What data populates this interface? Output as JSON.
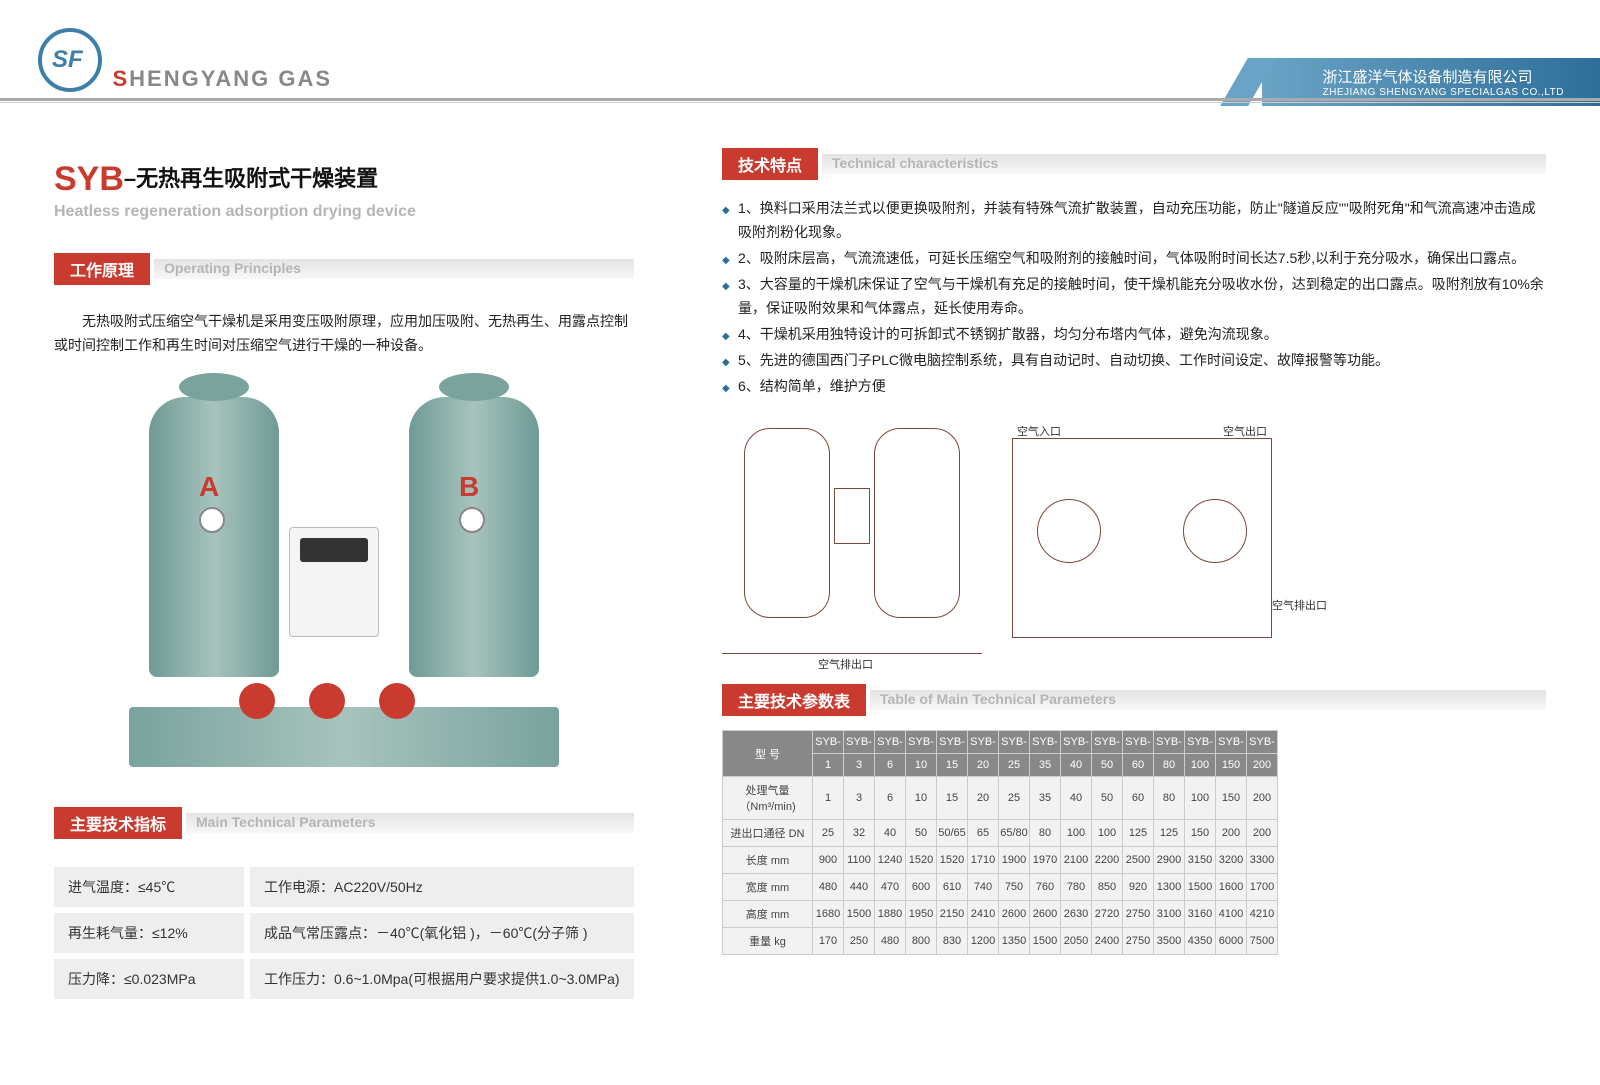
{
  "brand": {
    "name": "HENGYANG GAS",
    "prefix": "S"
  },
  "company": {
    "cn": "浙江盛洋气体设备制造有限公司",
    "en": "ZHEJIANG SHENGYANG SPECIALGAS CO.,LTD"
  },
  "product": {
    "code": "SYB",
    "cn": "–无热再生吸附式干燥装置",
    "en": "Heatless regeneration adsorption drying device"
  },
  "sections": {
    "principle": {
      "cn": "工作原理",
      "en": "Operating  Principles"
    },
    "spec": {
      "cn": "主要技术指标",
      "en": "Main Technical Parameters"
    },
    "feat": {
      "cn": "技术特点",
      "en": "Technical characteristics"
    },
    "table": {
      "cn": "主要技术参数表",
      "en": "Table of Main Technical Parameters"
    }
  },
  "principle_text": "无热吸附式压缩空气干燥机是采用变压吸附原理，应用加压吸附、无热再生、用露点控制或时间控制工作和再生时间对压缩空气进行干燥的一种设备。",
  "tank_labels": {
    "a": "A",
    "b": "B"
  },
  "specs": [
    {
      "a": "进气温度：≤45℃",
      "b": "工作电源：AC220V/50Hz"
    },
    {
      "a": "再生耗气量：≤12%",
      "b": "成品气常压露点：－40℃(氧化铝 )，－60℃(分子筛 )"
    },
    {
      "a": "压力降：≤0.023MPa",
      "b": "工作压力：0.6~1.0Mpa(可根据用户要求提供1.0~3.0MPa)"
    }
  ],
  "features": [
    "1、换料口采用法兰式以便更换吸附剂，并装有特殊气流扩散装置，自动充压功能，防止\"隧道反应\"\"吸附死角\"和气流高速冲击造成吸附剂粉化现象。",
    "2、吸附床层高，气流流速低，可延长压缩空气和吸附剂的接触时间，气体吸附时间长达7.5秒,以利于充分吸水，确保出口露点。",
    "3、大容量的干燥机床保证了空气与干燥机有充足的接触时间，使干燥机能充分吸收水份，达到稳定的出口露点。吸附剂放有10%余量，保证吸附效果和气体露点，延长使用寿命。",
    "4、干燥机采用独特设计的可拆卸式不锈钢扩散器，均匀分布塔内气体，避免沟流现象。",
    "5、先进的德国西门子PLC微电脑控制系统，具有自动记时、自动切换、工作时间设定、故障报警等功能。",
    "6、结构简单，维护方便"
  ],
  "diag_labels": {
    "inlet": "空气入口",
    "outlet": "空气出口",
    "exhaust": "空气排出口"
  },
  "param": {
    "model_label": "型  号",
    "model_prefix": "SYB-",
    "models": [
      "1",
      "3",
      "6",
      "10",
      "15",
      "20",
      "25",
      "35",
      "40",
      "50",
      "60",
      "80",
      "100",
      "150",
      "200"
    ],
    "rows": [
      {
        "h": "处理气量（Nm³/min)",
        "v": [
          "1",
          "3",
          "6",
          "10",
          "15",
          "20",
          "25",
          "35",
          "40",
          "50",
          "60",
          "80",
          "100",
          "150",
          "200"
        ]
      },
      {
        "h": "进出口通径 DN",
        "v": [
          "25",
          "32",
          "40",
          "50",
          "50/65",
          "65",
          "65/80",
          "80",
          "100",
          "100",
          "125",
          "125",
          "150",
          "200",
          "200"
        ]
      },
      {
        "h": "长度 mm",
        "v": [
          "900",
          "1100",
          "1240",
          "1520",
          "1520",
          "1710",
          "1900",
          "1970",
          "2100",
          "2200",
          "2500",
          "2900",
          "3150",
          "3200",
          "3300"
        ]
      },
      {
        "h": "宽度 mm",
        "v": [
          "480",
          "440",
          "470",
          "600",
          "610",
          "740",
          "750",
          "760",
          "780",
          "850",
          "920",
          "1300",
          "1500",
          "1600",
          "1700"
        ]
      },
      {
        "h": "高度 mm",
        "v": [
          "1680",
          "1500",
          "1880",
          "1950",
          "2150",
          "2410",
          "2600",
          "2600",
          "2630",
          "2720",
          "2750",
          "3100",
          "3160",
          "4100",
          "4210"
        ]
      },
      {
        "h": "重量 kg",
        "v": [
          "170",
          "250",
          "480",
          "800",
          "830",
          "1200",
          "1350",
          "1500",
          "2050",
          "2400",
          "2750",
          "3500",
          "4350",
          "6000",
          "7500"
        ]
      }
    ]
  },
  "colors": {
    "red": "#c93a2f",
    "blue": "#2d6e99",
    "grey": "#b5b5b5"
  }
}
